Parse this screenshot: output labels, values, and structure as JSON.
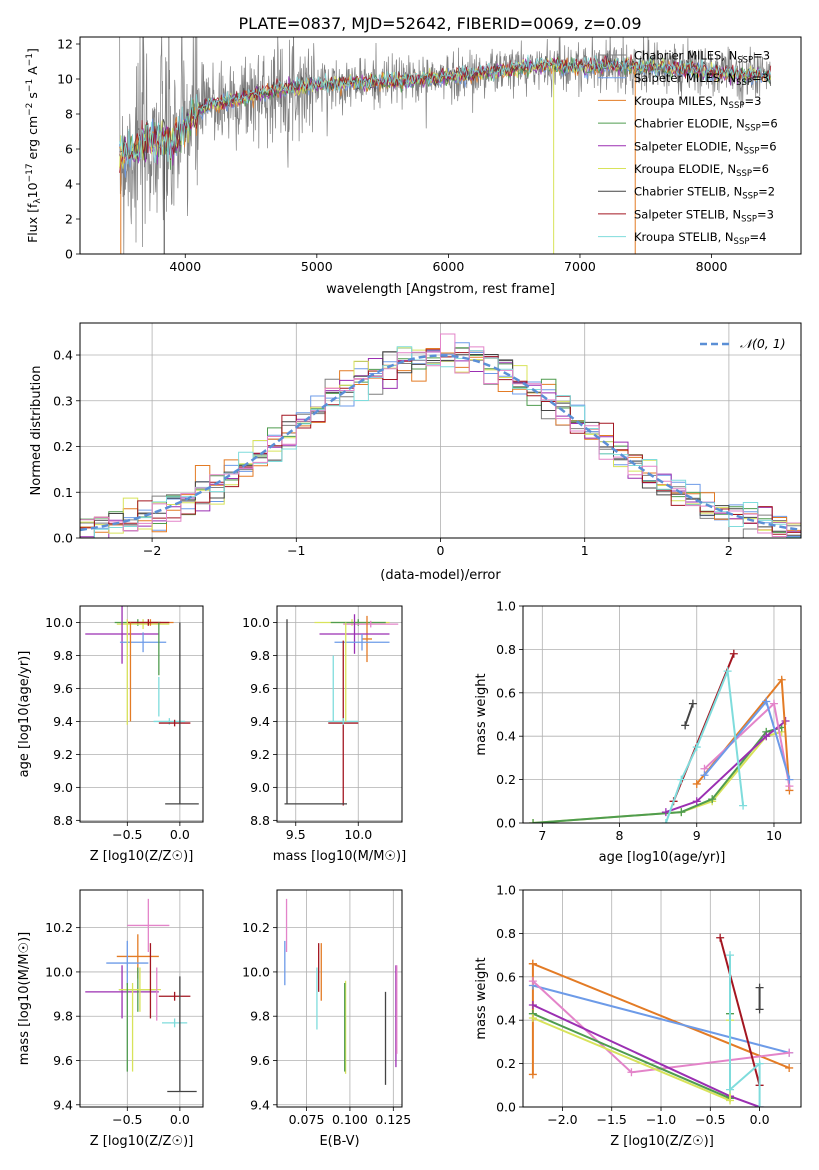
{
  "figure_title": "PLATE=0837, MJD=52642, FIBERID=0069, z=0.09",
  "colors": {
    "Chabrier MILES": "#7f7f7f",
    "Salpeter MILES": "#6d9be8",
    "Kroupa MILES": "#e37b25",
    "Chabrier ELODIE": "#4f9c4f",
    "Salpeter ELODIE": "#9b2fb2",
    "Kroupa ELODIE": "#d8e35a",
    "Chabrier STELIB": "#444444",
    "Salpeter STELIB": "#a31621",
    "Kroupa STELIB": "#7fdcdc",
    "extra_pink": "#e384c9",
    "normal_curve": "#5b8fd6"
  },
  "chart_data": [
    {
      "id": "spectrum",
      "type": "line",
      "title": "PLATE=0837, MJD=52642, FIBERID=0069, z=0.09",
      "xlabel": "wavelength [Angstrom, rest frame]",
      "ylabel": "Flux [f_λ 10^-17 erg cm^-2 s^-1 A^-1]",
      "xlim": [
        3200,
        8680
      ],
      "ylim": [
        0,
        12.4
      ],
      "xticks": [
        4000,
        5000,
        6000,
        7000,
        8000
      ],
      "yticks": [
        0,
        2,
        4,
        6,
        8,
        10,
        12
      ],
      "legend_position": "top-right",
      "legend": [
        {
          "label": "Chabrier MILES, N",
          "sub": "SSP",
          "val": "=3",
          "color": "#7f7f7f"
        },
        {
          "label": "Salpeter MILES, N",
          "sub": "SSP",
          "val": "=3",
          "color": "#6d9be8"
        },
        {
          "label": "Kroupa MILES, N",
          "sub": "SSP",
          "val": "=3",
          "color": "#e37b25"
        },
        {
          "label": "Chabrier ELODIE, N",
          "sub": "SSP",
          "val": "=6",
          "color": "#4f9c4f"
        },
        {
          "label": "Salpeter ELODIE, N",
          "sub": "SSP",
          "val": "=6",
          "color": "#9b2fb2"
        },
        {
          "label": "Kroupa ELODIE, N",
          "sub": "SSP",
          "val": "=6",
          "color": "#d8e35a"
        },
        {
          "label": "Chabrier STELIB, N",
          "sub": "SSP",
          "val": "=2",
          "color": "#444444"
        },
        {
          "label": "Salpeter STELIB, N",
          "sub": "SSP",
          "val": "=3",
          "color": "#a31621"
        },
        {
          "label": "Kroupa STELIB, N",
          "sub": "SSP",
          "val": "=4",
          "color": "#7fdcdc"
        }
      ],
      "continuum": [
        [
          3500,
          5.6
        ],
        [
          3600,
          5.8
        ],
        [
          3700,
          6.3
        ],
        [
          3800,
          6.6
        ],
        [
          3900,
          6.2
        ],
        [
          4000,
          7.3
        ],
        [
          4100,
          8.2
        ],
        [
          4200,
          8.6
        ],
        [
          4300,
          8.7
        ],
        [
          4500,
          9.0
        ],
        [
          4700,
          9.4
        ],
        [
          5000,
          9.7
        ],
        [
          5300,
          9.8
        ],
        [
          5600,
          9.9
        ],
        [
          6000,
          10.1
        ],
        [
          6200,
          10.3
        ],
        [
          6500,
          10.6
        ],
        [
          6800,
          10.8
        ],
        [
          7000,
          10.7
        ],
        [
          7200,
          10.8
        ],
        [
          7500,
          10.7
        ],
        [
          7800,
          10.6
        ],
        [
          8000,
          10.4
        ],
        [
          8200,
          10.3
        ],
        [
          8400,
          10.2
        ]
      ]
    },
    {
      "id": "residuals",
      "type": "histogram",
      "xlabel": "(data-model)/error",
      "ylabel": "Normed distribution",
      "xlim": [
        -2.5,
        2.5
      ],
      "ylim": [
        0,
        0.47
      ],
      "xticks": [
        -2,
        -1,
        0,
        1,
        2
      ],
      "yticks": [
        0.0,
        0.1,
        0.2,
        0.3,
        0.4
      ],
      "legend_label": "N(0,1)",
      "legend_position": "top-right",
      "bin_width": 0.1
    },
    {
      "id": "z_age",
      "type": "errorbar",
      "xlabel": "Z [log10(Z/Z☉)]",
      "ylabel": "age [log10(age/yr)]",
      "xlim": [
        -0.95,
        0.22
      ],
      "ylim": [
        8.79,
        10.1
      ],
      "xticks": [
        -0.5,
        0.0
      ],
      "yticks": [
        8.8,
        9.0,
        9.2,
        9.4,
        9.6,
        9.8,
        10.0
      ],
      "points": [
        {
          "x": -0.4,
          "xe": 0.22,
          "y": 10.0,
          "ye": 0.02,
          "c": "#4f9c4f"
        },
        {
          "x": -0.35,
          "xe": 0.25,
          "y": 9.99,
          "ye": 0.03,
          "c": "#d8e35a"
        },
        {
          "x": -0.28,
          "xe": 0.22,
          "y": 10.0,
          "ye": 0.02,
          "c": "#e37b25"
        },
        {
          "x": -0.3,
          "xe": 0.2,
          "y": 10.0,
          "ye": 0.02,
          "c": "#a31621"
        },
        {
          "x": -0.55,
          "xe": 0.35,
          "y": 9.93,
          "ye": 0.18,
          "c": "#9b2fb2"
        },
        {
          "x": -0.35,
          "xe": 0.22,
          "y": 9.88,
          "ye": 0.06,
          "c": "#6d9be8"
        },
        {
          "x": -0.1,
          "xe": 0.15,
          "y": 9.4,
          "ye": 0.02,
          "c": "#7fdcdc"
        },
        {
          "x": -0.2,
          "xe": 0.0,
          "y": 9.55,
          "ye": 0.12,
          "c": "#7fdcdc"
        },
        {
          "x": -0.05,
          "xe": 0.15,
          "y": 9.39,
          "ye": 0.02,
          "c": "#a31621"
        },
        {
          "x": 0.02,
          "xe": 0.16,
          "y": 8.9,
          "ye": 0.0,
          "c": "#444444"
        },
        {
          "x": 0.0,
          "xe": 0.0,
          "y": 9.45,
          "ye": 0.55,
          "c": "#444444"
        },
        {
          "x": -0.5,
          "xe": 0.0,
          "y": 9.7,
          "ye": 0.32,
          "c": "#d8e35a"
        },
        {
          "x": -0.47,
          "xe": 0.0,
          "y": 9.7,
          "ye": 0.3,
          "c": "#e37b25"
        },
        {
          "x": -0.2,
          "xe": 0.0,
          "y": 9.84,
          "ye": 0.16,
          "c": "#4f9c4f"
        }
      ]
    },
    {
      "id": "mass_age",
      "type": "errorbar",
      "xlabel": "mass [log10(M/M☉)]",
      "ylabel": "",
      "xlim": [
        9.35,
        10.35
      ],
      "ylim": [
        8.79,
        10.1
      ],
      "xticks": [
        9.5,
        10.0
      ],
      "yticks": [
        8.8,
        9.0,
        9.2,
        9.4,
        9.6,
        9.8,
        10.0
      ],
      "points": [
        {
          "x": 9.95,
          "xe": 0.3,
          "y": 10.0,
          "ye": 0.02,
          "c": "#d8e35a"
        },
        {
          "x": 10.0,
          "xe": 0.22,
          "y": 10.0,
          "ye": 0.02,
          "c": "#4f9c4f"
        },
        {
          "x": 10.1,
          "xe": 0.22,
          "y": 9.99,
          "ye": 0.02,
          "c": "#e384c9"
        },
        {
          "x": 10.07,
          "xe": 0.04,
          "y": 9.9,
          "ye": 0.14,
          "c": "#e37b25"
        },
        {
          "x": 9.97,
          "xe": 0.28,
          "y": 9.93,
          "ye": 0.12,
          "c": "#9b2fb2"
        },
        {
          "x": 10.03,
          "xe": 0.22,
          "y": 9.88,
          "ye": 0.05,
          "c": "#6d9be8"
        },
        {
          "x": 9.88,
          "xe": 0.12,
          "y": 9.39,
          "ye": 0.5,
          "c": "#a31621"
        },
        {
          "x": 9.88,
          "xe": 0.12,
          "y": 9.4,
          "ye": 0.02,
          "c": "#7fdcdc"
        },
        {
          "x": 9.8,
          "xe": 0.0,
          "y": 9.6,
          "ye": 0.2,
          "c": "#7fdcdc"
        },
        {
          "x": 9.66,
          "xe": 0.25,
          "y": 8.9,
          "ye": 0.0,
          "c": "#444444"
        },
        {
          "x": 9.43,
          "xe": 0.0,
          "y": 9.46,
          "ye": 0.56,
          "c": "#444444"
        },
        {
          "x": 9.9,
          "xe": 0.0,
          "y": 9.7,
          "ye": 0.3,
          "c": "#d8e35a"
        }
      ]
    },
    {
      "id": "age_weight",
      "type": "line",
      "xlabel": "age [log10(age/yr)]",
      "ylabel": "mass weight",
      "xlim": [
        6.75,
        10.35
      ],
      "ylim": [
        0,
        1.0
      ],
      "xticks": [
        7,
        8,
        9,
        10
      ],
      "yticks": [
        0.0,
        0.2,
        0.4,
        0.6,
        0.8,
        1.0
      ],
      "series": [
        {
          "c": "#d8e35a",
          "pts": [
            [
              6.88,
              0.0
            ],
            [
              8.8,
              0.05
            ],
            [
              9.2,
              0.1
            ],
            [
              9.9,
              0.4
            ],
            [
              10.1,
              0.42
            ]
          ]
        },
        {
          "c": "#4f9c4f",
          "pts": [
            [
              6.88,
              0.0
            ],
            [
              8.8,
              0.05
            ],
            [
              9.2,
              0.11
            ],
            [
              9.9,
              0.42
            ],
            [
              10.1,
              0.44
            ]
          ]
        },
        {
          "c": "#9b2fb2",
          "pts": [
            [
              8.6,
              0.05
            ],
            [
              9.0,
              0.1
            ],
            [
              9.9,
              0.4
            ],
            [
              10.15,
              0.47
            ]
          ]
        },
        {
          "c": "#e37b25",
          "pts": [
            [
              9.0,
              0.18
            ],
            [
              10.1,
              0.66
            ],
            [
              10.2,
              0.15
            ]
          ]
        },
        {
          "c": "#e384c9",
          "pts": [
            [
              9.1,
              0.25
            ],
            [
              10.0,
              0.55
            ],
            [
              10.2,
              0.17
            ]
          ]
        },
        {
          "c": "#6d9be8",
          "pts": [
            [
              9.1,
              0.22
            ],
            [
              9.9,
              0.56
            ],
            [
              10.2,
              0.2
            ]
          ]
        },
        {
          "c": "#a31621",
          "pts": [
            [
              8.7,
              0.1
            ],
            [
              9.48,
              0.78
            ]
          ]
        },
        {
          "c": "#7fdcdc",
          "pts": [
            [
              8.6,
              0.0
            ],
            [
              8.8,
              0.2
            ],
            [
              9.0,
              0.35
            ],
            [
              9.4,
              0.7
            ],
            [
              9.6,
              0.08
            ]
          ]
        },
        {
          "c": "#444444",
          "pts": [
            [
              8.85,
              0.45
            ],
            [
              8.95,
              0.55
            ]
          ]
        }
      ]
    },
    {
      "id": "z_mass",
      "type": "errorbar",
      "xlabel": "Z [log10(Z/Z☉)]",
      "ylabel": "mass [log10(M/M☉)]",
      "xlim": [
        -0.95,
        0.22
      ],
      "ylim": [
        9.39,
        10.37
      ],
      "xticks": [
        -0.5,
        0.0
      ],
      "yticks": [
        9.4,
        9.6,
        9.8,
        10.0,
        10.2
      ],
      "points": [
        {
          "x": -0.3,
          "xe": 0.2,
          "y": 10.21,
          "ye": 0.12,
          "c": "#e384c9"
        },
        {
          "x": -0.4,
          "xe": 0.2,
          "y": 10.07,
          "ye": 0.1,
          "c": "#e37b25"
        },
        {
          "x": -0.5,
          "xe": 0.2,
          "y": 10.04,
          "ye": 0.1,
          "c": "#6d9be8"
        },
        {
          "x": -0.55,
          "xe": 0.35,
          "y": 9.91,
          "ye": 0.12,
          "c": "#9b2fb2"
        },
        {
          "x": -0.4,
          "xe": 0.18,
          "y": 9.92,
          "ye": 0.1,
          "c": "#4f9c4f"
        },
        {
          "x": -0.38,
          "xe": 0.2,
          "y": 9.92,
          "ye": 0.1,
          "c": "#d8e35a"
        },
        {
          "x": -0.05,
          "xe": 0.15,
          "y": 9.89,
          "ye": 0.02,
          "c": "#a31621"
        },
        {
          "x": -0.05,
          "xe": 0.12,
          "y": 9.77,
          "ye": 0.02,
          "c": "#7fdcdc"
        },
        {
          "x": 0.02,
          "xe": 0.14,
          "y": 9.46,
          "ye": 0.0,
          "c": "#444444"
        },
        {
          "x": 0.0,
          "xe": 0.0,
          "y": 9.72,
          "ye": 0.26,
          "c": "#444444"
        },
        {
          "x": -0.5,
          "xe": 0.0,
          "y": 9.75,
          "ye": 0.2,
          "c": "#4f9c4f"
        },
        {
          "x": -0.22,
          "xe": 0.0,
          "y": 9.9,
          "ye": 0.12,
          "c": "#e384c9"
        },
        {
          "x": -0.28,
          "xe": 0.0,
          "y": 9.96,
          "ye": 0.17,
          "c": "#a31621"
        },
        {
          "x": -0.45,
          "xe": 0.0,
          "y": 9.75,
          "ye": 0.2,
          "c": "#d8e35a"
        }
      ]
    },
    {
      "id": "ebv_mass",
      "type": "errorbar",
      "xlabel": "E(B-V)",
      "ylabel": "",
      "xlim": [
        0.058,
        0.13
      ],
      "ylim": [
        9.39,
        10.37
      ],
      "xticks": [
        0.075,
        0.1,
        0.125
      ],
      "yticks": [
        9.4,
        9.6,
        9.8,
        10.0,
        10.2
      ],
      "points": [
        {
          "x": 0.0635,
          "y": 10.21,
          "ye": 0.12,
          "c": "#e384c9"
        },
        {
          "x": 0.0625,
          "y": 10.04,
          "ye": 0.1,
          "c": "#6d9be8"
        },
        {
          "x": 0.0835,
          "y": 10.0,
          "ye": 0.13,
          "c": "#e37b25"
        },
        {
          "x": 0.082,
          "y": 10.02,
          "ye": 0.11,
          "c": "#a31621"
        },
        {
          "x": 0.081,
          "y": 9.88,
          "ye": 0.14,
          "c": "#7fdcdc"
        },
        {
          "x": 0.0975,
          "y": 9.75,
          "ye": 0.21,
          "c": "#d8e35a"
        },
        {
          "x": 0.097,
          "y": 9.75,
          "ye": 0.2,
          "c": "#4f9c4f"
        },
        {
          "x": 0.1205,
          "y": 9.7,
          "ye": 0.21,
          "c": "#444444"
        },
        {
          "x": 0.1265,
          "y": 9.8,
          "ye": 0.23,
          "c": "#9b2fb2"
        },
        {
          "x": 0.127,
          "y": 9.83,
          "ye": 0.2,
          "c": "#e384c9"
        }
      ]
    },
    {
      "id": "z_weight",
      "type": "line",
      "xlabel": "Z [log10(Z/Z☉)]",
      "ylabel": "mass weight",
      "xlim": [
        -2.4,
        0.42
      ],
      "ylim": [
        0,
        1.0
      ],
      "xticks": [
        -2.0,
        -1.5,
        -1.0,
        -0.5,
        0.0
      ],
      "yticks": [
        0.0,
        0.2,
        0.4,
        0.6,
        0.8,
        1.0
      ],
      "series": [
        {
          "c": "#e37b25",
          "pts": [
            [
              -2.3,
              0.66
            ],
            [
              0.3,
              0.18
            ]
          ]
        },
        {
          "c": "#e37b25",
          "pts": [
            [
              -2.3,
              0.15
            ],
            [
              -2.3,
              0.66
            ]
          ]
        },
        {
          "c": "#6d9be8",
          "pts": [
            [
              -2.3,
              0.56
            ],
            [
              0.3,
              0.25
            ]
          ]
        },
        {
          "c": "#e384c9",
          "pts": [
            [
              -2.3,
              0.58
            ],
            [
              -1.3,
              0.16
            ],
            [
              0.3,
              0.25
            ]
          ]
        },
        {
          "c": "#9b2fb2",
          "pts": [
            [
              -2.3,
              0.47
            ],
            [
              -0.3,
              0.05
            ],
            [
              0.0,
              0.0
            ]
          ]
        },
        {
          "c": "#4f9c4f",
          "pts": [
            [
              -2.3,
              0.43
            ],
            [
              -0.3,
              0.04
            ],
            [
              -0.3,
              0.43
            ]
          ]
        },
        {
          "c": "#d8e35a",
          "pts": [
            [
              -2.3,
              0.41
            ],
            [
              -0.3,
              0.03
            ],
            [
              -0.3,
              0.4
            ]
          ]
        },
        {
          "c": "#a31621",
          "pts": [
            [
              -0.4,
              0.78
            ],
            [
              0.0,
              0.1
            ]
          ]
        },
        {
          "c": "#7fdcdc",
          "pts": [
            [
              -0.3,
              0.7
            ],
            [
              -0.3,
              0.08
            ],
            [
              0.0,
              0.2
            ],
            [
              0.0,
              0.0
            ]
          ]
        },
        {
          "c": "#444444",
          "pts": [
            [
              0.0,
              0.45
            ],
            [
              0.0,
              0.55
            ]
          ]
        }
      ]
    }
  ]
}
